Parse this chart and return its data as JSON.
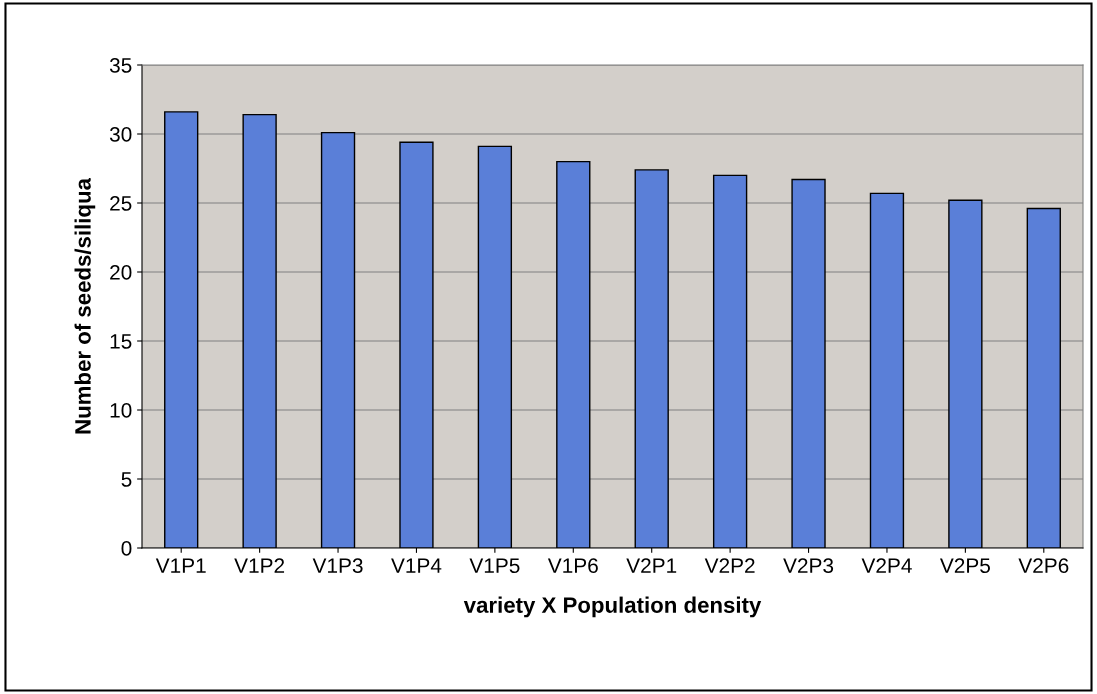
{
  "chart_data": {
    "type": "bar",
    "xlabel": "variety X Population density",
    "ylabel": "Number of seeds/siliqua",
    "categories": [
      "V1P1",
      "V1P2",
      "V1P3",
      "V1P4",
      "V1P5",
      "V1P6",
      "V2P1",
      "V2P2",
      "V2P3",
      "V2P4",
      "V2P5",
      "V2P6"
    ],
    "values": [
      31.6,
      31.4,
      30.1,
      29.4,
      29.1,
      28.0,
      27.4,
      27.0,
      26.7,
      25.7,
      25.2,
      24.6
    ],
    "color": "#5a7fd8",
    "ylim": [
      0,
      35
    ],
    "yticks": [
      0,
      5,
      10,
      15,
      20,
      25,
      30,
      35
    ],
    "grid": "y",
    "legend": false
  }
}
